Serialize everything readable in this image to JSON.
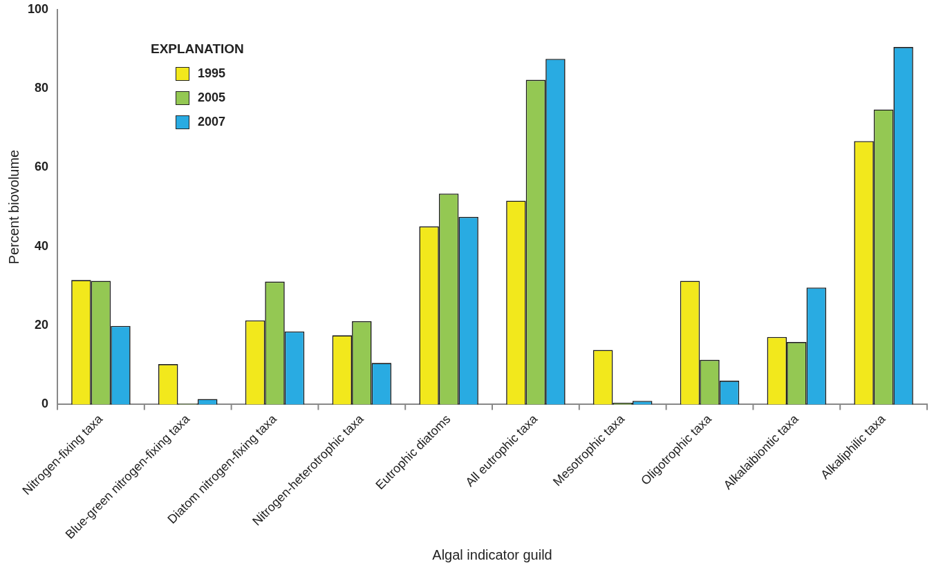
{
  "chart_data": {
    "type": "bar",
    "xlabel": "Algal indicator guild",
    "ylabel": "Percent biovolume",
    "legend_title": "EXPLANATION",
    "legend": "top left",
    "grid": false,
    "categories": [
      "Nitrogen-fixing taxa",
      "Blue-green nitrogen-fixing taxa",
      "Diatom nitrogen-fixing taxa",
      "Nitrogen-heterotrophic taxa",
      "Eutrophic diatoms",
      "All eutrophic taxa",
      "Mesotrophic taxa",
      "Oligotrophic taxa",
      "Alkalaibiontic taxa",
      "Alkaliphilic taxa"
    ],
    "series": [
      {
        "name": "1995",
        "color": "#f2e81c",
        "values": [
          31.5,
          10.2,
          21.3,
          17.5,
          45.1,
          51.6,
          13.8,
          31.3,
          17.1,
          66.7
        ]
      },
      {
        "name": "2005",
        "color": "#94c853",
        "values": [
          31.3,
          0.2,
          31.1,
          21.1,
          53.4,
          82.2,
          0.4,
          11.3,
          15.8,
          74.7
        ]
      },
      {
        "name": "2007",
        "color": "#29abe2",
        "values": [
          19.9,
          1.4,
          18.5,
          10.5,
          47.5,
          87.5,
          0.9,
          6.0,
          29.6,
          90.5
        ]
      }
    ],
    "ylim": [
      0,
      100
    ],
    "yticks": [
      0,
      20,
      40,
      60,
      80,
      100
    ]
  }
}
